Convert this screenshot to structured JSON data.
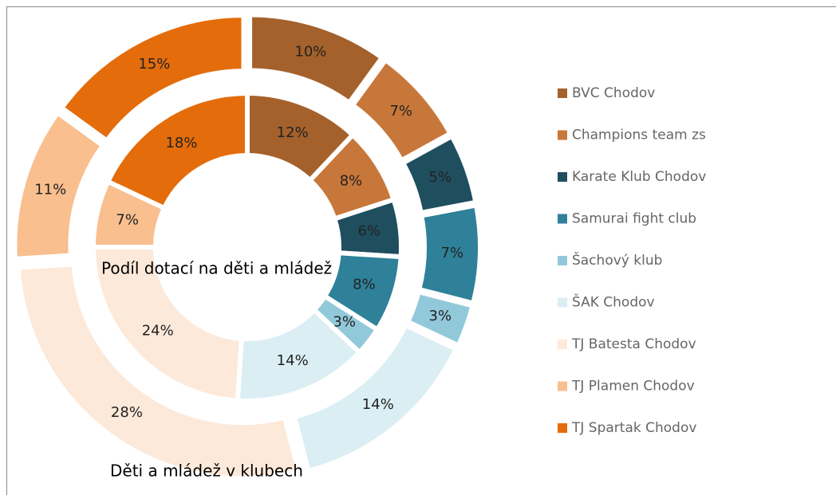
{
  "chart_data": {
    "type": "doughnut",
    "categories": [
      "BVC Chodov",
      "Champions team zs",
      "Karate Klub Chodov",
      "Samurai fight club",
      "Šachový klub",
      "ŠAK Chodov",
      "TJ Batesta Chodov",
      "TJ Plamen Chodov",
      "TJ Spartak Chodov"
    ],
    "colors": [
      "#a5612b",
      "#c8773a",
      "#1f4e5f",
      "#2e8199",
      "#92c9da",
      "#dbeef4",
      "#fde9d9",
      "#f9bf8f",
      "#e46c0a"
    ],
    "series": [
      {
        "name": "Podíl dotací na děti a mládež",
        "values": [
          12,
          8,
          6,
          8,
          3,
          14,
          24,
          7,
          18
        ],
        "value_labels": [
          "12%",
          "8%",
          "6%",
          "8%",
          "3%",
          "14%",
          "24%",
          "7%",
          "18%"
        ]
      },
      {
        "name": "Děti a mládež v klubech",
        "values": [
          10,
          7,
          5,
          7,
          3,
          14,
          28,
          11,
          15
        ],
        "value_labels": [
          "10%",
          "7%",
          "5%",
          "7%",
          "3%",
          "14%",
          "28%",
          "11%",
          "15%"
        ]
      }
    ],
    "legend": "right"
  }
}
